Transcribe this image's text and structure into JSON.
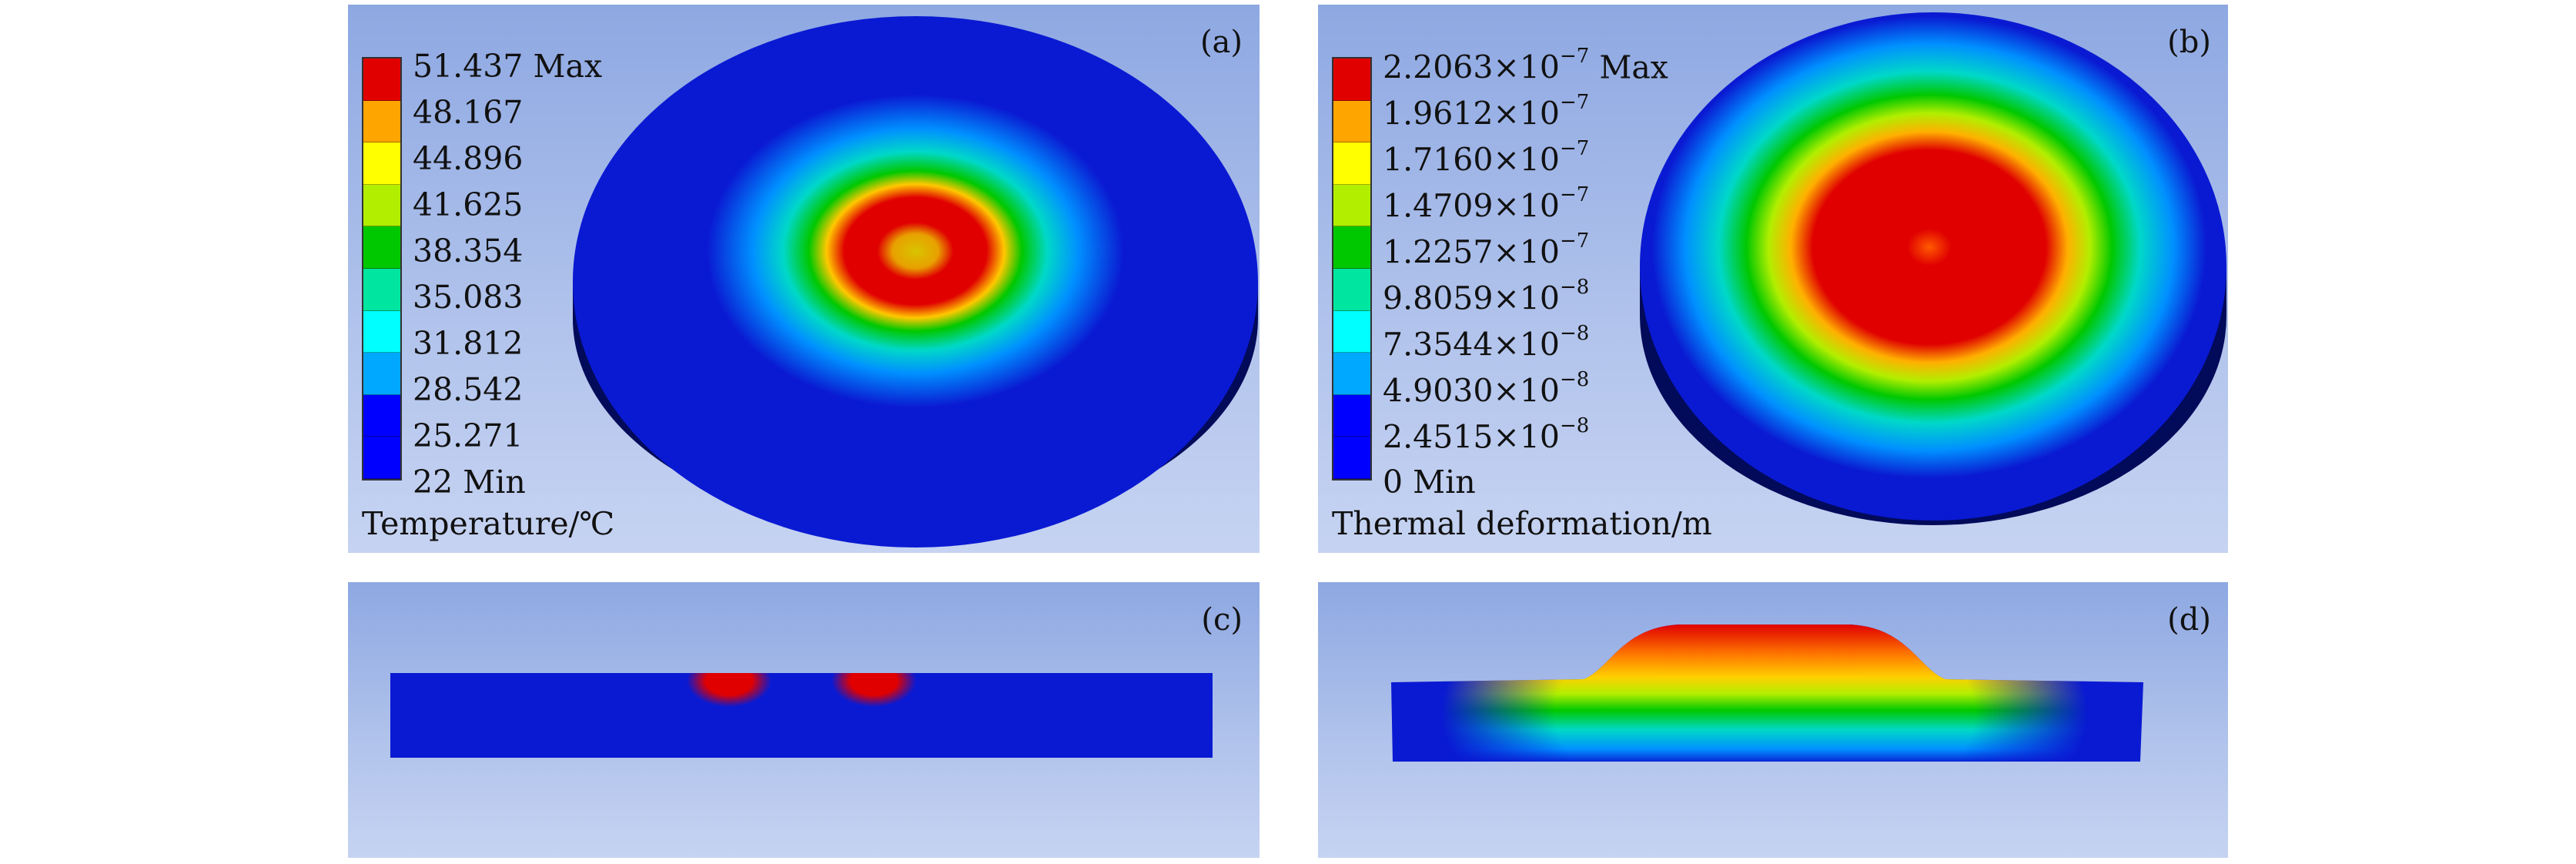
{
  "panels": {
    "a": {
      "tag": "(a)",
      "quantity": "Temperature/℃",
      "legend": [
        {
          "value": "51.437",
          "suffix": "Max"
        },
        {
          "value": "48.167",
          "suffix": ""
        },
        {
          "value": "44.896",
          "suffix": ""
        },
        {
          "value": "41.625",
          "suffix": ""
        },
        {
          "value": "38.354",
          "suffix": ""
        },
        {
          "value": "35.083",
          "suffix": ""
        },
        {
          "value": "31.812",
          "suffix": ""
        },
        {
          "value": "28.542",
          "suffix": ""
        },
        {
          "value": "25.271",
          "suffix": ""
        },
        {
          "value": "22",
          "suffix": "Min"
        }
      ]
    },
    "b": {
      "tag": "(b)",
      "quantity": "Thermal deformation/m",
      "legend": [
        {
          "mantissa": "2.2063",
          "exp": "−7",
          "suffix": "Max"
        },
        {
          "mantissa": "1.9612",
          "exp": "−7",
          "suffix": ""
        },
        {
          "mantissa": "1.7160",
          "exp": "−7",
          "suffix": ""
        },
        {
          "mantissa": "1.4709",
          "exp": "−7",
          "suffix": ""
        },
        {
          "mantissa": "1.2257",
          "exp": "−7",
          "suffix": ""
        },
        {
          "mantissa": "9.8059",
          "exp": "−8",
          "suffix": ""
        },
        {
          "mantissa": "7.3544",
          "exp": "−8",
          "suffix": ""
        },
        {
          "mantissa": "4.9030",
          "exp": "−8",
          "suffix": ""
        },
        {
          "mantissa": "2.4515",
          "exp": "−8",
          "suffix": ""
        },
        {
          "mantissa": "0",
          "exp": "",
          "suffix": "Min"
        }
      ]
    },
    "c": {
      "tag": "(c)"
    },
    "d": {
      "tag": "(d)"
    }
  },
  "colors": {
    "legend_bands": [
      "#e00000",
      "#ffa500",
      "#ffff00",
      "#b2ee00",
      "#00c800",
      "#00e6a0",
      "#00ffff",
      "#00a8ff",
      "#0000ff"
    ],
    "background_top": "#8ea8e2",
    "background_bottom": "#c6d3f2",
    "base_blue": "#0a1ad2",
    "side_dark": "#020a5a"
  }
}
